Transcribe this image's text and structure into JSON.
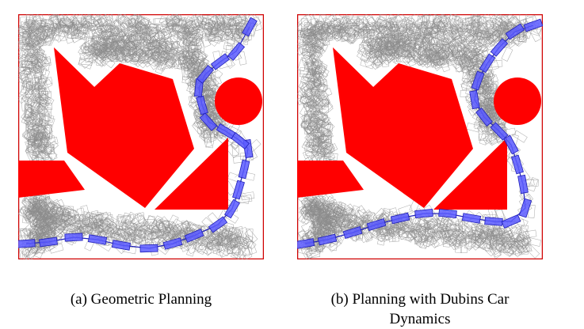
{
  "figure": {
    "colors": {
      "obstacle": "#ff0000",
      "border": "#d00000",
      "tree": "#8c8c8c",
      "path_fill": "#5a5aff",
      "path_stroke": "#1f1fb8"
    },
    "panels": [
      {
        "id": "a",
        "caption": "(a) Geometric Planning"
      },
      {
        "id": "b",
        "caption": "(b) Planning with Dubins Car",
        "caption_line2": "Dynamics"
      }
    ]
  }
}
